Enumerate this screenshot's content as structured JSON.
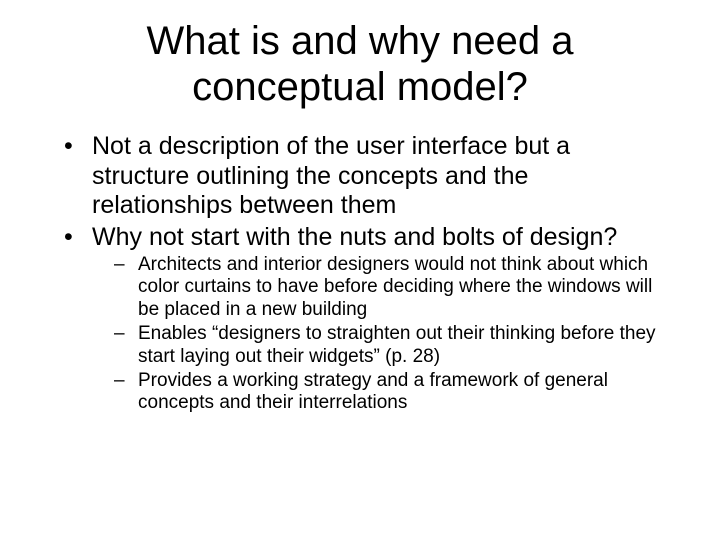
{
  "slide": {
    "title": "What is and why need a conceptual model?",
    "bullets": [
      {
        "text": "Not a description of the user interface but a structure outlining the concepts and the relationships between them"
      },
      {
        "text": "Why not start with the nuts and bolts of design?",
        "sub": [
          "Architects and interior designers would not think about which color curtains to have before deciding where the windows will be placed in a new building",
          "Enables “designers to straighten out their thinking before they start laying out their widgets” (p. 28)",
          "Provides a working strategy and a framework of general concepts and their interrelations"
        ]
      }
    ]
  },
  "style": {
    "background_color": "#ffffff",
    "text_color": "#000000",
    "font_family": "Comic Sans MS",
    "title_fontsize": 40,
    "level1_fontsize": 25,
    "level2_fontsize": 19
  }
}
